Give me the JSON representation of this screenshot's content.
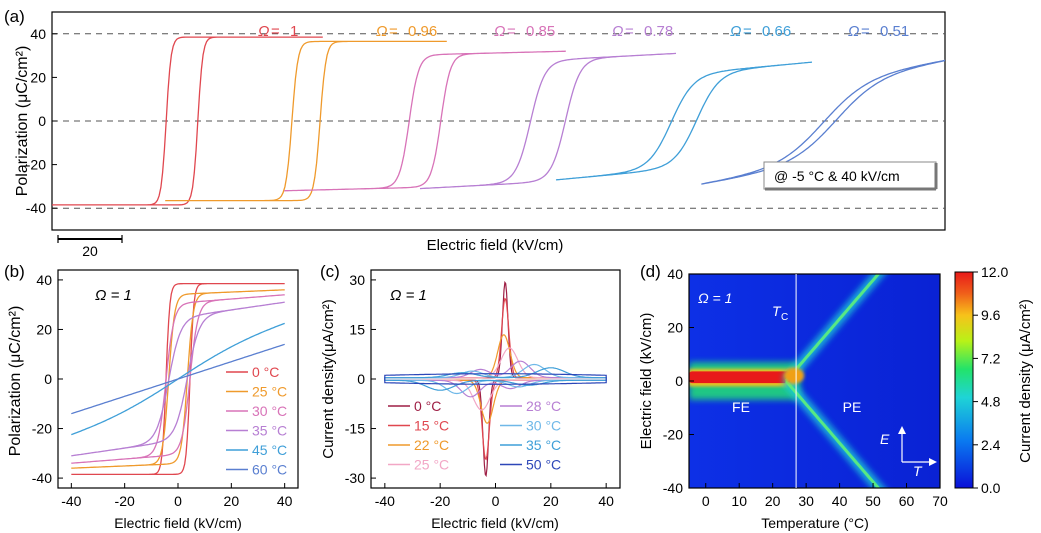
{
  "figure": {
    "panels": [
      {
        "id": "a",
        "label": "(a)"
      },
      {
        "id": "b",
        "label": "(b)"
      },
      {
        "id": "c",
        "label": "(c)"
      },
      {
        "id": "d",
        "label": "(d)"
      }
    ]
  },
  "colors": {
    "loopA": [
      "#e0474f",
      "#ef9a2c",
      "#d873b8",
      "#b77fd3",
      "#3f9fd8",
      "#5a7fd0"
    ],
    "loopB": [
      "#e0474f",
      "#ef9a2c",
      "#d873b8",
      "#b77fd3",
      "#3f9fd8",
      "#5a7fd0"
    ],
    "loopC": [
      "#9e1f45",
      "#e0474f",
      "#ef9a2c",
      "#f2a7c6",
      "#b77fd3",
      "#6fb8e8",
      "#3f9fd8",
      "#2d47b8"
    ]
  },
  "chart_data": [
    {
      "type": "line",
      "id": "a",
      "title": "",
      "xlabel": "Electric field (kV/cm)",
      "ylabel": "Polarization (μC/cm²)",
      "ylim": [
        -50,
        50
      ],
      "yticks": [
        "40",
        "20",
        "0",
        "-20",
        "-40"
      ],
      "ref_lines_y": [
        40,
        0,
        -40
      ],
      "scale_bar_label": "20",
      "scale_bar_kV": 20,
      "annotation": "@ -5 °C & 40 kV/cm",
      "series": [
        {
          "name": "Ω = 1",
          "omega": "1",
          "Ps": 38.5,
          "Ec": 4.5,
          "E0": 40,
          "a": 1.4,
          "b": 0.0
        },
        {
          "name": "Ω = 0.96",
          "omega": "0.96",
          "Ps": 36.5,
          "Ec": 4.0,
          "E0": 40,
          "a": 1.7,
          "b": 0.0
        },
        {
          "name": "Ω = 0.85",
          "omega": "0.85",
          "Ps": 32,
          "Ec": 4.5,
          "E0": 40,
          "a": 2.7,
          "b": 0.05
        },
        {
          "name": "Ω = 0.78",
          "omega": "0.78",
          "Ps": 31,
          "Ec": 5.5,
          "E0": 40,
          "a": 4.5,
          "b": 0.1
        },
        {
          "name": "Ω = 0.66",
          "omega": "0.66",
          "Ps": 27,
          "Ec": 4.0,
          "E0": 40,
          "a": 7,
          "b": 0.2
        },
        {
          "name": "Ω = 0.51",
          "omega": "0.51",
          "Ps": 29,
          "Ec": 2.0,
          "E0": 40,
          "a": 14,
          "b": 0.35
        }
      ]
    },
    {
      "type": "line",
      "id": "b",
      "title": "Ω = 1",
      "xlabel": "Electric field (kV/cm)",
      "ylabel": "Polarization (μC/cm²)",
      "xlim": [
        -45,
        45
      ],
      "ylim": [
        -44,
        44
      ],
      "xticks": [
        "-40",
        "-20",
        "0",
        "20",
        "40"
      ],
      "yticks": [
        "40",
        "20",
        "0",
        "-20",
        "-40"
      ],
      "series": [
        {
          "name": "0 °C",
          "Ps": 38.5,
          "Ec": 4.5,
          "a": 1.4,
          "b": 0.0
        },
        {
          "name": "25 °C",
          "Ps": 36,
          "Ec": 3.5,
          "a": 2.2,
          "b": 0.05
        },
        {
          "name": "30 °C",
          "Ps": 34,
          "Ec": 4.5,
          "a": 3.0,
          "b": 0.1
        },
        {
          "name": "35 °C",
          "Ps": 31,
          "Ec": 3.5,
          "a": 4.5,
          "b": 0.2
        },
        {
          "name": "45 °C",
          "Ps": 24,
          "Ec": 0.0,
          "a": 30,
          "b": 0.5
        },
        {
          "name": "60 °C",
          "Ps": 14,
          "Ec": 0.0,
          "a": 60,
          "b": 1.0
        }
      ]
    },
    {
      "type": "line",
      "id": "c",
      "title": "Ω = 1",
      "xlabel": "Electric field (kV/cm)",
      "ylabel": "Current density(μA/cm²)",
      "xlim": [
        -45,
        45
      ],
      "ylim": [
        -33,
        33
      ],
      "xticks": [
        "-40",
        "-20",
        "0",
        "20",
        "40"
      ],
      "yticks": [
        "30",
        "15",
        "0",
        "-15",
        "-30"
      ],
      "series": [
        {
          "name": "0 °C",
          "peak": 29,
          "pos": 3.5,
          "w": 1.0
        },
        {
          "name": "15 °C",
          "peak": 24,
          "pos": 3.5,
          "w": 1.3
        },
        {
          "name": "22 °C",
          "peak": 13,
          "pos": 3.0,
          "w": 2.2
        },
        {
          "name": "25 °C",
          "peak": 9,
          "pos": 5.0,
          "w": 3.0
        },
        {
          "name": "28 °C",
          "peak": 5,
          "pos": 9.0,
          "w": 3.5
        },
        {
          "name": "30 °C",
          "peak": 4,
          "pos": 14.0,
          "w": 4.0
        },
        {
          "name": "35 °C",
          "peak": 3,
          "pos": 20.0,
          "w": 5.0
        },
        {
          "name": "50 °C",
          "peak": 0.8,
          "pos": 0.0,
          "w": 40.0
        }
      ]
    },
    {
      "type": "heatmap",
      "id": "d",
      "title": "Ω = 1",
      "xlabel": "Temperature (°C)",
      "ylabel": "Electric field (kV/cm)",
      "colorbar_label": "Current density (μA/cm²)",
      "xlim": [
        -5,
        70
      ],
      "ylim": [
        -40,
        40
      ],
      "xticks": [
        "0",
        "10",
        "20",
        "30",
        "40",
        "50",
        "60",
        "70"
      ],
      "yticks": [
        "40",
        "20",
        "0",
        "-20",
        "-40"
      ],
      "colorbar_range": [
        0,
        12
      ],
      "colorbar_ticks": [
        "12.0",
        "9.6",
        "7.2",
        "4.8",
        "2.4",
        "0.0"
      ],
      "Tc": 27,
      "Tc_label": "T",
      "Tc_sub": "C",
      "region_FE": "FE",
      "region_PE": "PE",
      "axis_E": "E",
      "axis_T": "T"
    }
  ]
}
